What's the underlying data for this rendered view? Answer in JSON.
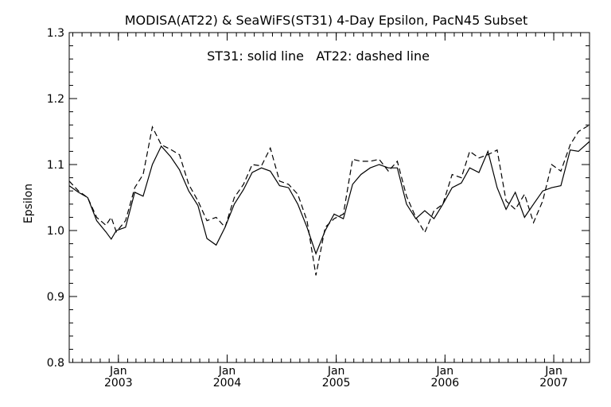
{
  "chart_data": {
    "type": "line",
    "title": "MODISA(AT22) & SeaWiFS(ST31) 4-Day Epsilon, PacN45 Subset",
    "annotation": "ST31: solid line   AT22: dashed line",
    "xlabel": "",
    "ylabel": "Epsilon",
    "xlim": [
      "2002-07-20",
      "2007-05-01"
    ],
    "ylim": [
      0.8,
      1.3
    ],
    "y_ticks": [
      "0.8",
      "0.9",
      "1.0",
      "1.1",
      "1.2",
      "1.3"
    ],
    "x_ticks": [
      {
        "date": "2003-01-01",
        "month": "Jan",
        "year": "2003"
      },
      {
        "date": "2004-01-01",
        "month": "Jan",
        "year": "2004"
      },
      {
        "date": "2005-01-01",
        "month": "Jan",
        "year": "2005"
      },
      {
        "date": "2006-01-01",
        "month": "Jan",
        "year": "2006"
      },
      {
        "date": "2007-01-01",
        "month": "Jan",
        "year": "2007"
      }
    ],
    "grid": false,
    "series": [
      {
        "name": "ST31",
        "style": "solid",
        "color": "#000000",
        "x": [
          "2002-07-20",
          "2002-08-20",
          "2002-09-20",
          "2002-10-20",
          "2002-11-20",
          "2002-12-08",
          "2002-12-25",
          "2003-01-25",
          "2003-02-25",
          "2003-03-25",
          "2003-04-25",
          "2003-05-25",
          "2003-06-25",
          "2003-07-25",
          "2003-08-25",
          "2003-09-25",
          "2003-10-25",
          "2003-11-25",
          "2003-12-25",
          "2004-01-25",
          "2004-02-25",
          "2004-03-25",
          "2004-04-25",
          "2004-05-25",
          "2004-06-25",
          "2004-07-25",
          "2004-08-25",
          "2004-09-25",
          "2004-10-25",
          "2004-11-25",
          "2004-12-25",
          "2005-01-25",
          "2005-02-25",
          "2005-03-25",
          "2005-04-25",
          "2005-05-25",
          "2005-06-25",
          "2005-07-25",
          "2005-08-25",
          "2005-09-25",
          "2005-10-25",
          "2005-11-25",
          "2005-12-25",
          "2006-01-25",
          "2006-02-25",
          "2006-03-25",
          "2006-04-25",
          "2006-05-25",
          "2006-06-25",
          "2006-07-25",
          "2006-08-25",
          "2006-09-25",
          "2006-10-25",
          "2006-11-25",
          "2006-12-25",
          "2007-01-25",
          "2007-02-25",
          "2007-03-25",
          "2007-05-01"
        ],
        "values": [
          1.068,
          1.058,
          1.05,
          1.015,
          0.998,
          0.987,
          1.0,
          1.005,
          1.058,
          1.052,
          1.1,
          1.128,
          1.112,
          1.092,
          1.06,
          1.038,
          0.988,
          0.978,
          1.005,
          1.04,
          1.062,
          1.088,
          1.095,
          1.09,
          1.068,
          1.065,
          1.04,
          1.005,
          0.965,
          1.0,
          1.025,
          1.018,
          1.07,
          1.085,
          1.095,
          1.1,
          1.095,
          1.095,
          1.04,
          1.018,
          1.03,
          1.018,
          1.04,
          1.065,
          1.072,
          1.095,
          1.088,
          1.12,
          1.065,
          1.032,
          1.058,
          1.02,
          1.04,
          1.06,
          1.065,
          1.068,
          1.122,
          1.12,
          1.135
        ]
      },
      {
        "name": "AT22",
        "style": "dashed",
        "color": "#000000",
        "x": [
          "2002-07-20",
          "2002-08-20",
          "2002-09-20",
          "2002-10-20",
          "2002-11-20",
          "2002-12-08",
          "2002-12-25",
          "2003-01-25",
          "2003-02-25",
          "2003-03-25",
          "2003-04-25",
          "2003-05-25",
          "2003-06-25",
          "2003-07-25",
          "2003-08-25",
          "2003-09-25",
          "2003-10-25",
          "2003-11-25",
          "2003-12-25",
          "2004-01-25",
          "2004-02-25",
          "2004-03-25",
          "2004-04-25",
          "2004-05-25",
          "2004-06-25",
          "2004-07-25",
          "2004-08-25",
          "2004-09-25",
          "2004-10-25",
          "2004-11-25",
          "2004-12-25",
          "2005-01-25",
          "2005-02-25",
          "2005-03-25",
          "2005-04-25",
          "2005-05-25",
          "2005-06-25",
          "2005-07-25",
          "2005-08-25",
          "2005-09-25",
          "2005-10-25",
          "2005-11-25",
          "2005-12-25",
          "2006-01-25",
          "2006-02-25",
          "2006-03-25",
          "2006-04-25",
          "2006-05-25",
          "2006-06-25",
          "2006-07-25",
          "2006-08-25",
          "2006-09-25",
          "2006-10-25",
          "2006-11-25",
          "2006-12-25",
          "2007-01-25",
          "2007-02-25",
          "2007-03-25",
          "2007-05-01"
        ],
        "values": [
          1.075,
          1.06,
          1.05,
          1.02,
          1.008,
          1.02,
          0.998,
          1.015,
          1.065,
          1.085,
          1.157,
          1.13,
          1.123,
          1.115,
          1.07,
          1.045,
          1.015,
          1.02,
          1.005,
          1.05,
          1.07,
          1.1,
          1.098,
          1.125,
          1.075,
          1.07,
          1.055,
          1.015,
          0.932,
          1.005,
          1.018,
          1.025,
          1.108,
          1.105,
          1.105,
          1.108,
          1.09,
          1.105,
          1.052,
          1.02,
          0.997,
          1.03,
          1.04,
          1.085,
          1.08,
          1.12,
          1.11,
          1.115,
          1.122,
          1.045,
          1.032,
          1.055,
          1.012,
          1.045,
          1.1,
          1.09,
          1.13,
          1.15,
          1.16
        ]
      }
    ]
  }
}
